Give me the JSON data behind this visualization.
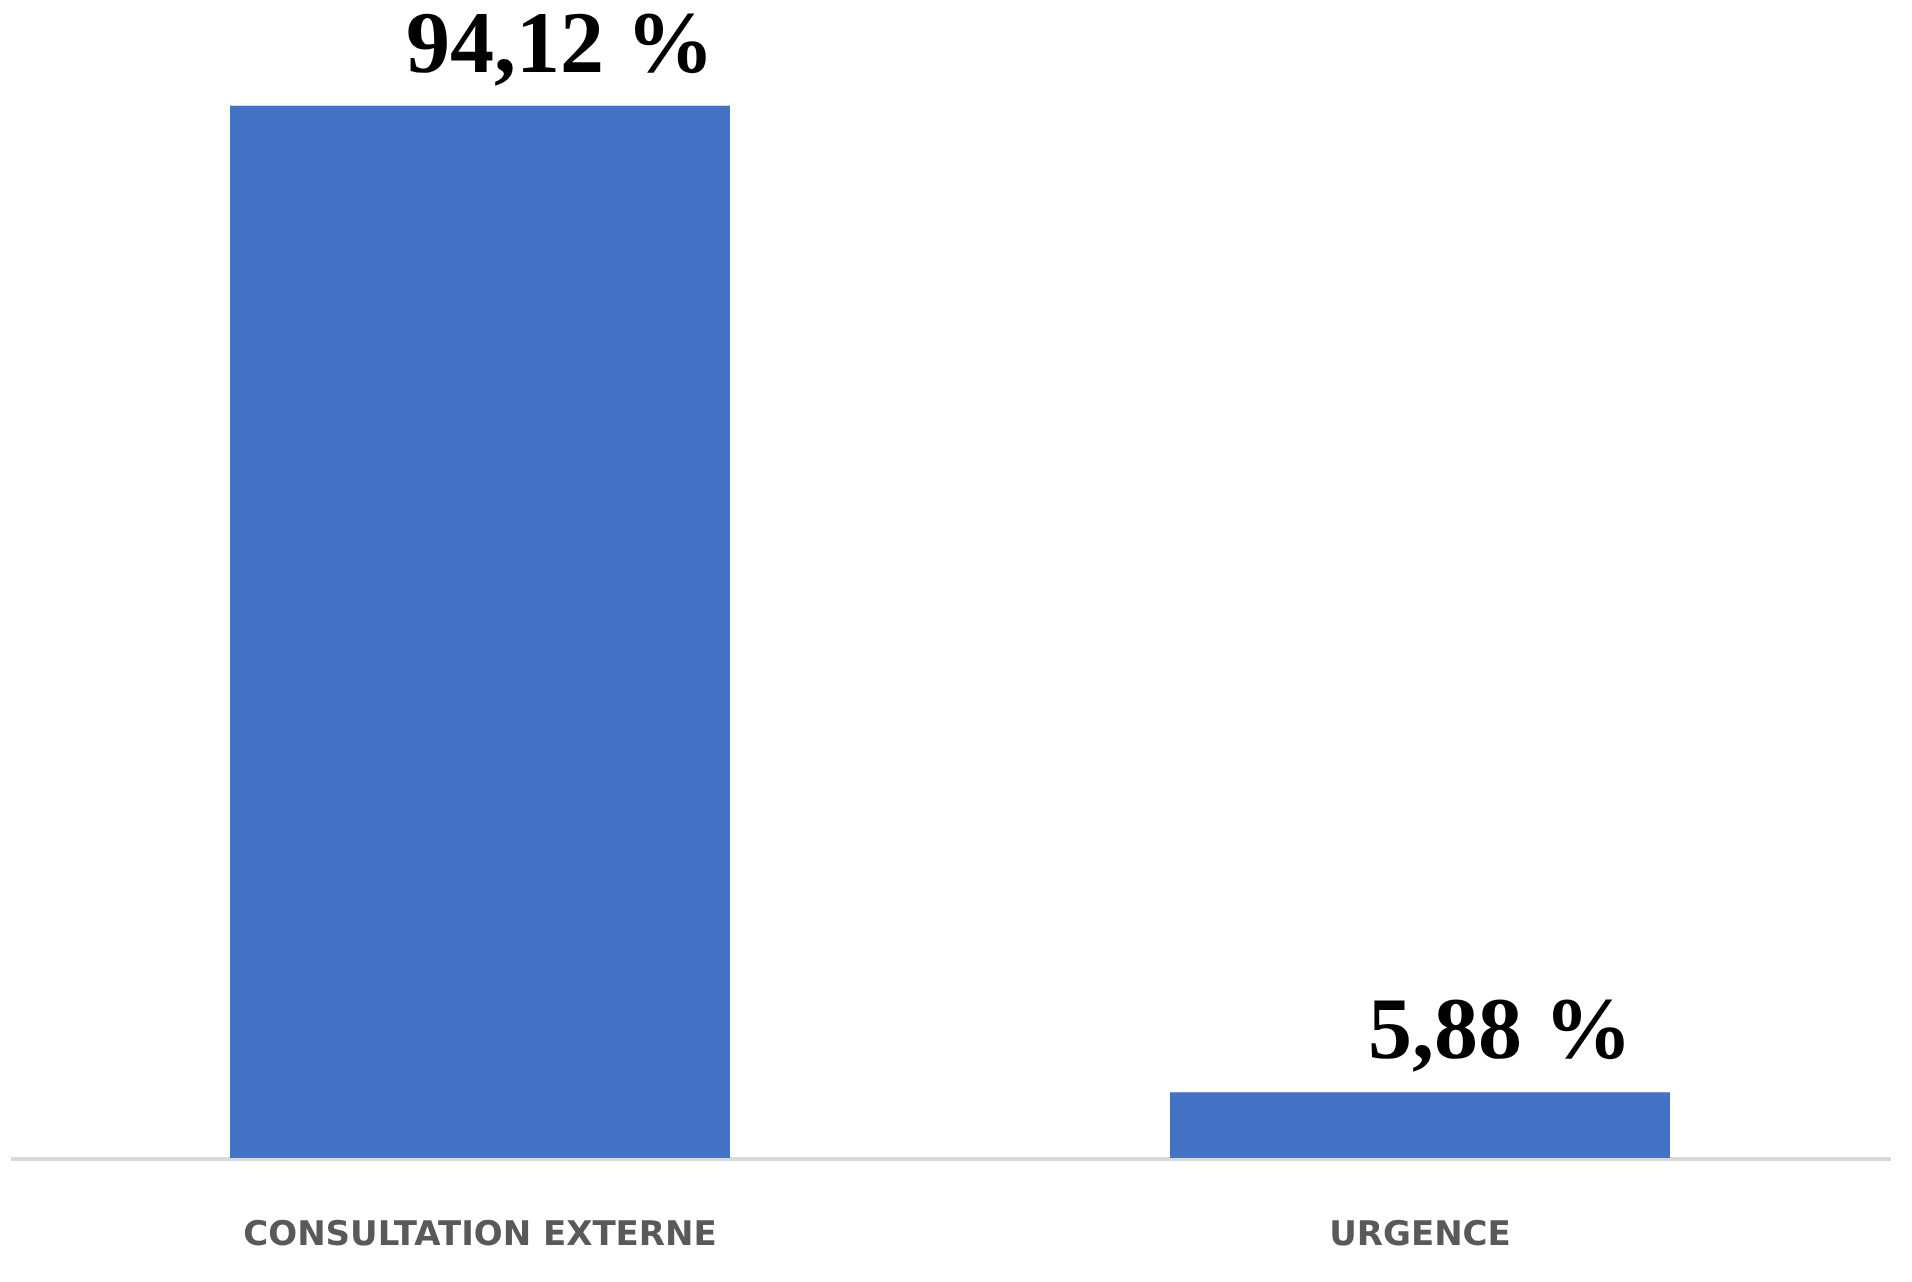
{
  "chart_data": {
    "type": "bar",
    "categories": [
      "CONSULTATION EXTERNE",
      "URGENCE"
    ],
    "values": [
      94.12,
      5.88
    ],
    "value_labels": [
      "94,12 %",
      "5,88 %"
    ],
    "color": "#4472c4"
  }
}
